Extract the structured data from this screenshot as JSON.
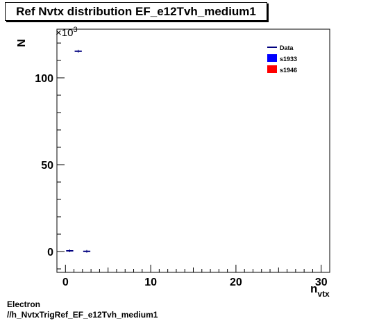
{
  "header": {
    "title": "Ref Nvtx distribution EF_e12Tvh_medium1"
  },
  "footer": {
    "line1": "Electron",
    "line2": "//h_NvtxTrigRef_EF_e12Tvh_medium1"
  },
  "chart_data": {
    "type": "scatter",
    "title": "Ref Nvtx distribution EF_e12Tvh_medium1",
    "xlabel": "n",
    "xlabel_subscript": "vtx",
    "ylabel": "N",
    "y_multiplier": "×10",
    "y_multiplier_exp": "3",
    "xlim": [
      -1,
      31
    ],
    "ylim": [
      -12,
      128
    ],
    "x_ticks": [
      0,
      10,
      20,
      30
    ],
    "y_ticks": [
      0,
      50,
      100
    ],
    "grid": false,
    "legend_position": "top-right",
    "legend": [
      {
        "label": "Data",
        "kind": "line",
        "color": "#00007f"
      },
      {
        "label": "s1933",
        "kind": "box",
        "color": "#0000ff"
      },
      {
        "label": "s1946",
        "kind": "box",
        "color": "#ff0000"
      }
    ],
    "series": [
      {
        "name": "Data",
        "color": "#00007f",
        "points": [
          {
            "x": 0.5,
            "y": 0.4
          },
          {
            "x": 1.5,
            "y": 115.3
          },
          {
            "x": 2.5,
            "y": 0.1
          }
        ]
      }
    ]
  }
}
